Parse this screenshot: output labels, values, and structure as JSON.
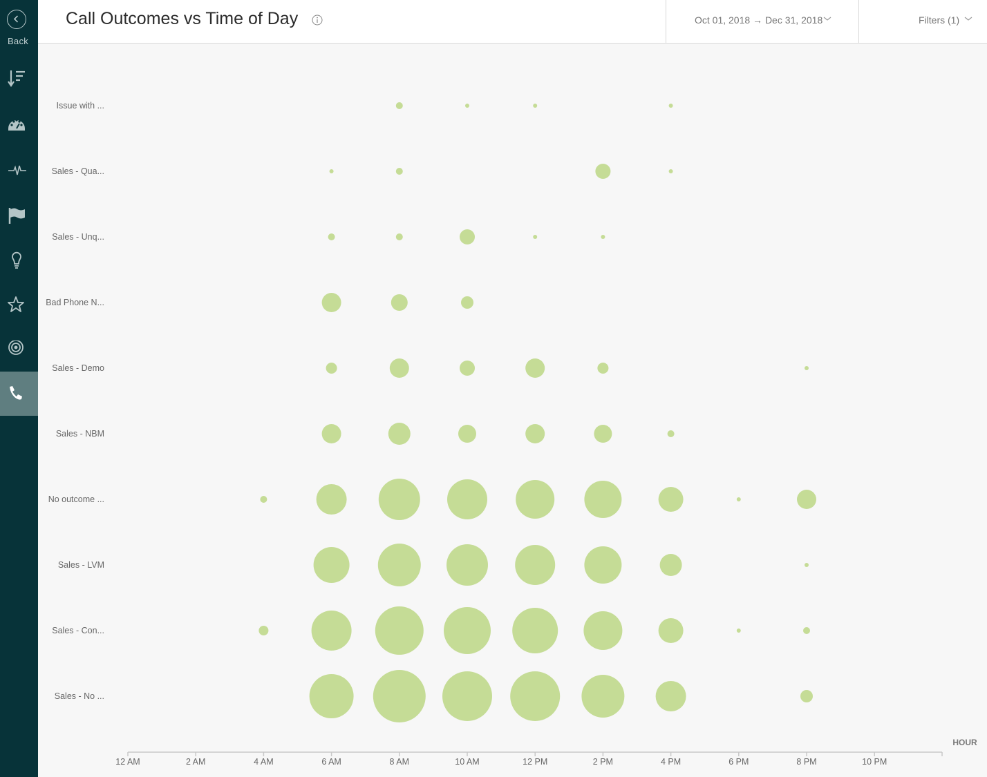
{
  "sidebar": {
    "back_label": "Back",
    "items": [
      {
        "icon": "sort-list-icon"
      },
      {
        "icon": "gauge-icon"
      },
      {
        "icon": "pulse-icon"
      },
      {
        "icon": "flag-icon"
      },
      {
        "icon": "lightbulb-icon"
      },
      {
        "icon": "star-icon"
      },
      {
        "icon": "target-icon"
      },
      {
        "icon": "phone-icon",
        "active": true
      }
    ],
    "active_color": "#5f7e80",
    "bg_color": "#073339"
  },
  "header": {
    "title": "Call Outcomes vs Time of Day",
    "date_range": "Oct 01, 2018 → Dec 31, 2018",
    "filters_label": "Filters (1)"
  },
  "chart_data": {
    "type": "scatter",
    "bubble": true,
    "color": "#c5dc96",
    "xlabel": "HOUR",
    "x_ticks": [
      0,
      2,
      4,
      6,
      8,
      10,
      12,
      14,
      16,
      18,
      20,
      22
    ],
    "x_tick_labels": [
      "12 AM",
      "2 AM",
      "4 AM",
      "6 AM",
      "8 AM",
      "10 AM",
      "12 PM",
      "2 PM",
      "4 PM",
      "6 PM",
      "8 PM",
      "10 PM"
    ],
    "xlim": [
      0,
      24
    ],
    "categories": [
      "Issue with ...",
      "Sales - Qua...",
      "Sales - Unq...",
      "Bad Phone N...",
      "Sales - Demo",
      "Sales - NBM",
      "No outcome ...",
      "Sales - LVM",
      "Sales - Con...",
      "Sales - No ..."
    ],
    "points": [
      {
        "category": "Issue with ...",
        "x": 8,
        "size": 5
      },
      {
        "category": "Issue with ...",
        "x": 10,
        "size": 3
      },
      {
        "category": "Issue with ...",
        "x": 12,
        "size": 3
      },
      {
        "category": "Issue with ...",
        "x": 16,
        "size": 3
      },
      {
        "category": "Sales - Qua...",
        "x": 6,
        "size": 3
      },
      {
        "category": "Sales - Qua...",
        "x": 8,
        "size": 5
      },
      {
        "category": "Sales - Qua...",
        "x": 14,
        "size": 11
      },
      {
        "category": "Sales - Qua...",
        "x": 16,
        "size": 3
      },
      {
        "category": "Sales - Unq...",
        "x": 6,
        "size": 5
      },
      {
        "category": "Sales - Unq...",
        "x": 8,
        "size": 5
      },
      {
        "category": "Sales - Unq...",
        "x": 10,
        "size": 11
      },
      {
        "category": "Sales - Unq...",
        "x": 12,
        "size": 3
      },
      {
        "category": "Sales - Unq...",
        "x": 14,
        "size": 3
      },
      {
        "category": "Bad Phone N...",
        "x": 6,
        "size": 14
      },
      {
        "category": "Bad Phone N...",
        "x": 8,
        "size": 12
      },
      {
        "category": "Bad Phone N...",
        "x": 10,
        "size": 9
      },
      {
        "category": "Sales - Demo",
        "x": 6,
        "size": 8
      },
      {
        "category": "Sales - Demo",
        "x": 8,
        "size": 14
      },
      {
        "category": "Sales - Demo",
        "x": 10,
        "size": 11
      },
      {
        "category": "Sales - Demo",
        "x": 12,
        "size": 14
      },
      {
        "category": "Sales - Demo",
        "x": 14,
        "size": 8
      },
      {
        "category": "Sales - Demo",
        "x": 20,
        "size": 3
      },
      {
        "category": "Sales - NBM",
        "x": 6,
        "size": 14
      },
      {
        "category": "Sales - NBM",
        "x": 8,
        "size": 16
      },
      {
        "category": "Sales - NBM",
        "x": 10,
        "size": 13
      },
      {
        "category": "Sales - NBM",
        "x": 12,
        "size": 14
      },
      {
        "category": "Sales - NBM",
        "x": 14,
        "size": 13
      },
      {
        "category": "Sales - NBM",
        "x": 16,
        "size": 5
      },
      {
        "category": "No outcome ...",
        "x": 4,
        "size": 5
      },
      {
        "category": "No outcome ...",
        "x": 6,
        "size": 22
      },
      {
        "category": "No outcome ...",
        "x": 8,
        "size": 30
      },
      {
        "category": "No outcome ...",
        "x": 10,
        "size": 29
      },
      {
        "category": "No outcome ...",
        "x": 12,
        "size": 28
      },
      {
        "category": "No outcome ...",
        "x": 14,
        "size": 27
      },
      {
        "category": "No outcome ...",
        "x": 16,
        "size": 18
      },
      {
        "category": "No outcome ...",
        "x": 18,
        "size": 3
      },
      {
        "category": "No outcome ...",
        "x": 20,
        "size": 14
      },
      {
        "category": "Sales - LVM",
        "x": 6,
        "size": 26
      },
      {
        "category": "Sales - LVM",
        "x": 8,
        "size": 31
      },
      {
        "category": "Sales - LVM",
        "x": 10,
        "size": 30
      },
      {
        "category": "Sales - LVM",
        "x": 12,
        "size": 29
      },
      {
        "category": "Sales - LVM",
        "x": 14,
        "size": 27
      },
      {
        "category": "Sales - LVM",
        "x": 16,
        "size": 16
      },
      {
        "category": "Sales - LVM",
        "x": 20,
        "size": 3
      },
      {
        "category": "Sales - Con...",
        "x": 4,
        "size": 7
      },
      {
        "category": "Sales - Con...",
        "x": 6,
        "size": 29
      },
      {
        "category": "Sales - Con...",
        "x": 8,
        "size": 35
      },
      {
        "category": "Sales - Con...",
        "x": 10,
        "size": 34
      },
      {
        "category": "Sales - Con...",
        "x": 12,
        "size": 33
      },
      {
        "category": "Sales - Con...",
        "x": 14,
        "size": 28
      },
      {
        "category": "Sales - Con...",
        "x": 16,
        "size": 18
      },
      {
        "category": "Sales - Con...",
        "x": 18,
        "size": 3
      },
      {
        "category": "Sales - Con...",
        "x": 20,
        "size": 5
      },
      {
        "category": "Sales - No ...",
        "x": 6,
        "size": 32
      },
      {
        "category": "Sales - No ...",
        "x": 8,
        "size": 38
      },
      {
        "category": "Sales - No ...",
        "x": 10,
        "size": 36
      },
      {
        "category": "Sales - No ...",
        "x": 12,
        "size": 36
      },
      {
        "category": "Sales - No ...",
        "x": 14,
        "size": 31
      },
      {
        "category": "Sales - No ...",
        "x": 16,
        "size": 22
      },
      {
        "category": "Sales - No ...",
        "x": 20,
        "size": 9
      }
    ]
  }
}
